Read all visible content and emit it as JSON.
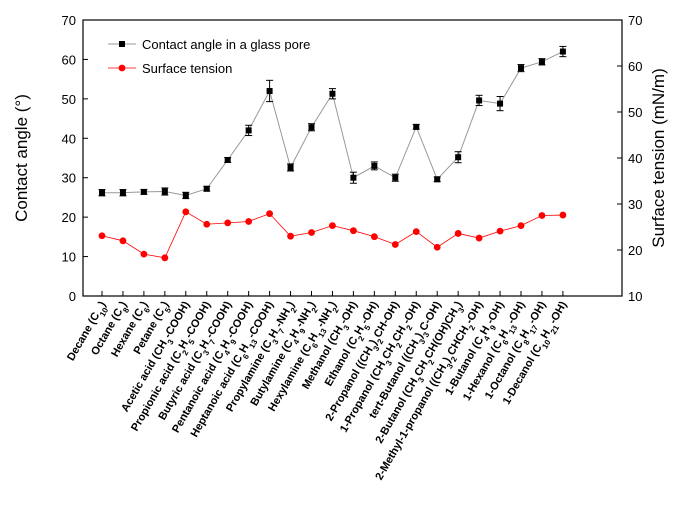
{
  "chart_data": {
    "type": "line",
    "title": "",
    "xlabel": "",
    "ylabel": "Contact angle (°)",
    "y2label": "Surface tension (mN/m)",
    "ylim": [
      0,
      70
    ],
    "y2lim": [
      10,
      70
    ],
    "yticks": [
      0,
      10,
      20,
      30,
      40,
      50,
      60,
      70
    ],
    "y2ticks": [
      10,
      20,
      30,
      40,
      50,
      60,
      70
    ],
    "legend_position": "top-left",
    "grid": false,
    "categories": [
      {
        "label": "Decane (C",
        "sub": "10",
        "tail": ")"
      },
      {
        "label": "Octane (C",
        "sub": "8",
        "tail": ")"
      },
      {
        "label": "Hexane (C",
        "sub": "6",
        "tail": ")"
      },
      {
        "label": "Petane (C",
        "sub": "5",
        "tail": ")"
      },
      {
        "label": "Acetic acid (CH",
        "sub": "3",
        "tail": "-COOH)"
      },
      {
        "label": "Propionic acid (C",
        "sub": "2",
        "mid": "H",
        "sub2": "5",
        "tail": "-COOH)"
      },
      {
        "label": "Butyric acid (C",
        "sub": "3",
        "mid": "H",
        "sub2": "7",
        "tail": "-COOH)"
      },
      {
        "label": "Pentanoic acid (C",
        "sub": "4",
        "mid": "H",
        "sub2": "9",
        "tail": "-COOH)"
      },
      {
        "label": "Heptanoic acid (C",
        "sub": "6",
        "mid": "H",
        "sub2": "13",
        "tail": "-COOH)"
      },
      {
        "label": "Propylamine (C",
        "sub": "3",
        "mid": "H",
        "sub2": "7",
        "tail": "-NH",
        "sub3": "2",
        "tail2": ")"
      },
      {
        "label": "Butylamine (C",
        "sub": "4",
        "mid": "H",
        "sub2": "9",
        "tail": "-NH",
        "sub3": "2",
        "tail2": ")"
      },
      {
        "label": "Hexylamine (C",
        "sub": "6",
        "mid": "H",
        "sub2": "13",
        "tail": "-NH",
        "sub3": "2",
        "tail2": ")"
      },
      {
        "label": "Methanol (CH",
        "sub": "3",
        "tail": "-OH)"
      },
      {
        "label": "Ethanol (C",
        "sub": "2",
        "mid": "H",
        "sub2": "5",
        "tail": "-OH)"
      },
      {
        "label": "2-Propanol ((CH",
        "sub": "3",
        "mid": ")",
        "sub2": "2",
        "tail": "CH-OH)"
      },
      {
        "label": "1-Propanol (CH",
        "sub": "3",
        "mid": "CH",
        "sub2": "2",
        "tail": "CH",
        "sub3": "2",
        "tail2": "-OH)"
      },
      {
        "label": "tert-Butanol ((CH",
        "sub": "3",
        "mid": ")",
        "sub2": "3",
        "tail": "C-OH)"
      },
      {
        "label": "2-Butanol (CH",
        "sub": "3",
        "mid": "CH",
        "sub2": "2",
        "tail": "CH(OH)CH",
        "sub3": "3",
        "tail2": ")"
      },
      {
        "label": "2-Methyl-1-propanol ((CH",
        "sub": "3",
        "mid": ")",
        "sub2": "2",
        "tail": "CHCH",
        "sub3": "2",
        "tail2": "-OH)"
      },
      {
        "label": "1-Butanol (C",
        "sub": "4",
        "mid": "H",
        "sub2": "9",
        "tail": "-OH)"
      },
      {
        "label": "1-Hexanol (C",
        "sub": "6",
        "mid": "H",
        "sub2": "13",
        "tail": "-OH)"
      },
      {
        "label": "1-Octanol (C",
        "sub": "8",
        "mid": "H",
        "sub2": "17",
        "tail": "-OH)"
      },
      {
        "label": "1-Decanol (C",
        "sub": "10",
        "mid": "H",
        "sub2": "21",
        "tail": "-OH)"
      }
    ],
    "series": [
      {
        "name": "Contact angle in a glass pore",
        "axis": "left",
        "color": "#000000",
        "line_color": "#999999",
        "marker": "square",
        "values": [
          26.2,
          26.2,
          26.4,
          26.5,
          25.5,
          27.2,
          34.5,
          42.0,
          52.0,
          32.6,
          42.8,
          51.3,
          30.0,
          33.0,
          30.0,
          42.9,
          29.6,
          35.2,
          49.6,
          48.8,
          57.8,
          59.4,
          62.0
        ],
        "errors": [
          0.8,
          0.8,
          0.6,
          0.9,
          0.8,
          0.6,
          0.6,
          1.3,
          2.7,
          0.9,
          0.9,
          1.3,
          1.4,
          1.0,
          0.9,
          0.6,
          0.6,
          1.4,
          1.3,
          1.8,
          0.9,
          0.8,
          1.3
        ]
      },
      {
        "name": "Surface tension",
        "axis": "right",
        "color": "#ff0000",
        "line_color": "#ff0000",
        "marker": "circle",
        "values": [
          23.1,
          22.0,
          19.1,
          18.3,
          28.3,
          25.6,
          25.9,
          26.2,
          27.9,
          23.0,
          23.8,
          25.3,
          24.2,
          22.9,
          21.2,
          24.0,
          20.6,
          23.6,
          22.6,
          24.1,
          25.3,
          27.5,
          27.6
        ]
      }
    ]
  }
}
